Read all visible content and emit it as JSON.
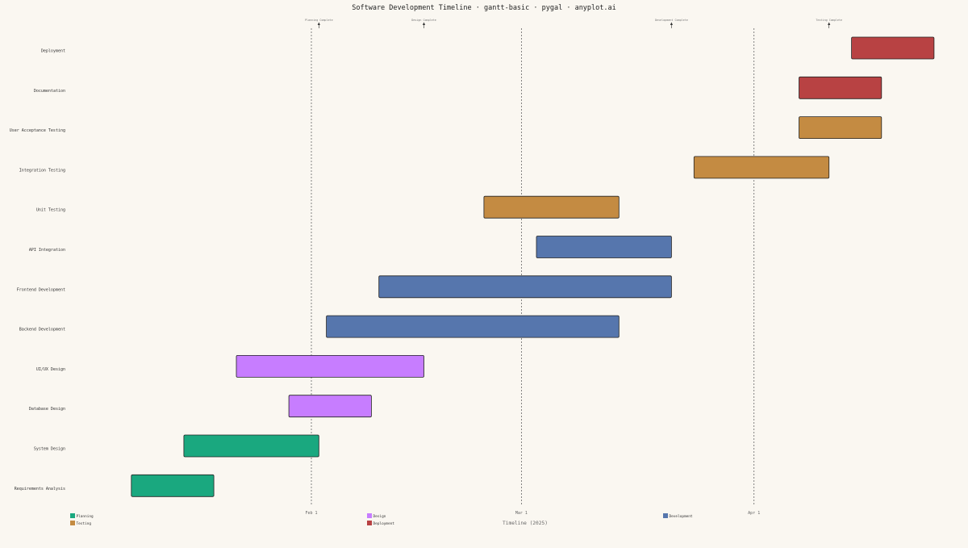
{
  "chart_data": {
    "type": "gantt",
    "title": "Software Development Timeline · gantt-basic · pygal · anyplot.ai",
    "xlabel": "Timeline (2025)",
    "ylabel": "",
    "x_ticks": [
      {
        "date": "2025-02-01",
        "label": "Feb 1"
      },
      {
        "date": "2025-03-01",
        "label": "Mar 1"
      },
      {
        "date": "2025-04-01",
        "label": "Apr 1"
      }
    ],
    "tasks": [
      {
        "name": "Requirements Analysis",
        "category": "Planning",
        "start": "2025-01-08",
        "end": "2025-01-19"
      },
      {
        "name": "System Design",
        "category": "Planning",
        "start": "2025-01-15",
        "end": "2025-02-02"
      },
      {
        "name": "Database Design",
        "category": "Design",
        "start": "2025-01-29",
        "end": "2025-02-09"
      },
      {
        "name": "UI/UX Design",
        "category": "Design",
        "start": "2025-01-22",
        "end": "2025-02-16"
      },
      {
        "name": "Backend Development",
        "category": "Development",
        "start": "2025-02-03",
        "end": "2025-03-14"
      },
      {
        "name": "Frontend Development",
        "category": "Development",
        "start": "2025-02-10",
        "end": "2025-03-21"
      },
      {
        "name": "API Integration",
        "category": "Development",
        "start": "2025-03-03",
        "end": "2025-03-21"
      },
      {
        "name": "Unit Testing",
        "category": "Testing",
        "start": "2025-02-24",
        "end": "2025-03-14"
      },
      {
        "name": "Integration Testing",
        "category": "Testing",
        "start": "2025-03-24",
        "end": "2025-04-11"
      },
      {
        "name": "User Acceptance Testing",
        "category": "Testing",
        "start": "2025-04-07",
        "end": "2025-04-18"
      },
      {
        "name": "Documentation",
        "category": "Deployment",
        "start": "2025-04-07",
        "end": "2025-04-18"
      },
      {
        "name": "Deployment",
        "category": "Deployment",
        "start": "2025-04-14",
        "end": "2025-04-25"
      }
    ],
    "milestones": [
      {
        "label": "Planning Complete",
        "date": "2025-02-02"
      },
      {
        "label": "Design Complete",
        "date": "2025-02-16"
      },
      {
        "label": "Development Complete",
        "date": "2025-03-21"
      },
      {
        "label": "Testing Complete",
        "date": "2025-04-11"
      }
    ],
    "categories": [
      {
        "name": "Planning",
        "color": "#1aa87f"
      },
      {
        "name": "Design",
        "color": "#c77dff"
      },
      {
        "name": "Development",
        "color": "#5676ad"
      },
      {
        "name": "Testing",
        "color": "#c48b42"
      },
      {
        "name": "Deployment",
        "color": "#b84243"
      }
    ],
    "legend_position": "bottom-left",
    "grid": "vertical dashed lines at month starts"
  }
}
